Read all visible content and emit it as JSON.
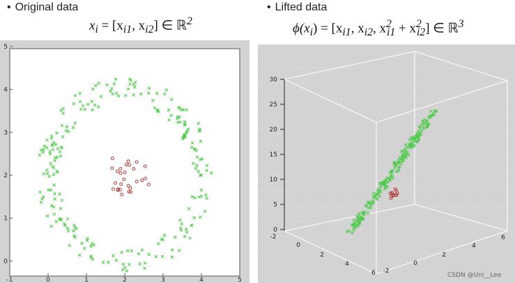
{
  "left": {
    "heading": "Original data",
    "formula_lhs": "x",
    "formula_sub": "i",
    "formula_rhs": "= [x",
    "formula_rhs2": "i1",
    "formula_rhs3": ", x",
    "formula_rhs4": "i2",
    "formula_rhs5": "] ∈ ℝ",
    "formula_sup": "2",
    "x_ticks": [
      "-1",
      "0",
      "1",
      "2",
      "3",
      "4",
      "5"
    ],
    "y_ticks": [
      "0",
      "1",
      "2",
      "3",
      "4",
      "5"
    ],
    "y_ticks_partial": [
      "-"
    ]
  },
  "right": {
    "heading": "Lifted data",
    "formula": "ϕ(x",
    "formula_sub": "i",
    "formula_mid": ") = [x",
    "f_s1": "i1",
    "f_mid2": ", x",
    "f_s2": "i2",
    "f_mid3": ", x",
    "f_s3": "i1",
    "f_sup3": "2",
    "f_mid4": " + x",
    "f_s4": "i2",
    "f_sup4": "2",
    "f_end": "] ∈ ℝ",
    "f_sup5": "3",
    "z_ticks": [
      "30",
      "25",
      "20",
      "15",
      "10",
      "5",
      "0"
    ],
    "x_ticks": [
      "-2",
      "0",
      "2",
      "4",
      "6"
    ],
    "y_ticks": [
      "-2",
      "0",
      "2",
      "4",
      "6"
    ],
    "watermark": "CSDN @Uni__Lee"
  },
  "colors": {
    "green": "#4ec94a",
    "red": "#b03a3a"
  }
}
